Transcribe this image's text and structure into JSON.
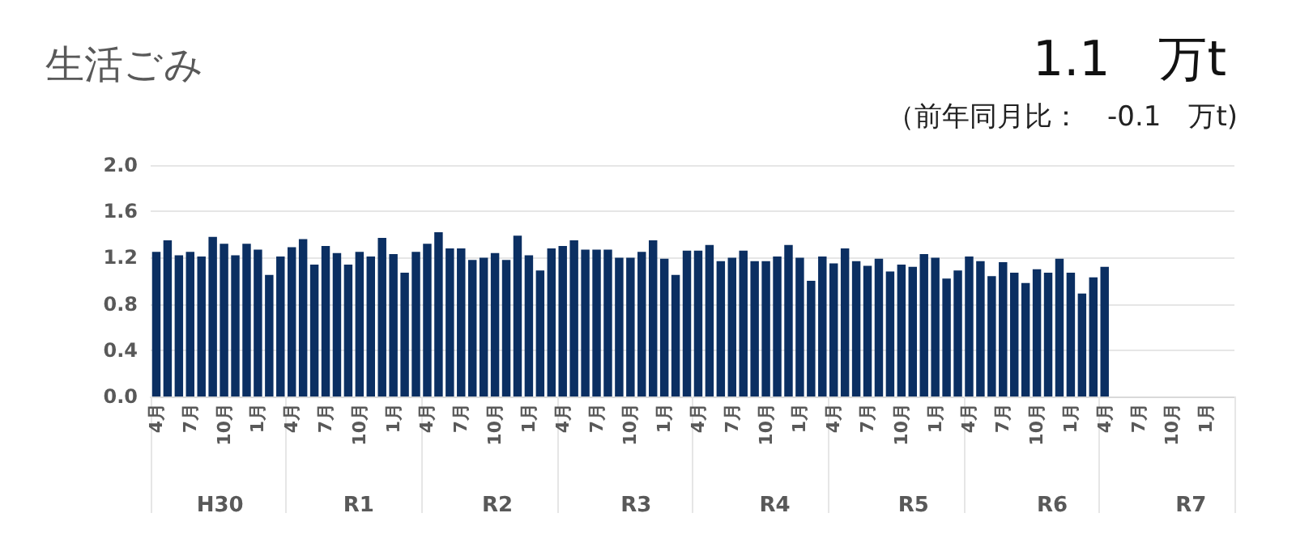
{
  "chart_data": {
    "type": "bar",
    "title": "生活ごみ",
    "subtitle": "1.1　万t",
    "annotations": [
      "（前年同月比：　-0.1　万t)",
      "H30",
      "R1",
      "R2",
      "R3",
      "R4",
      "R5",
      "R6",
      "R7"
    ],
    "categories": [
      "4月",
      null,
      null,
      "7月",
      null,
      null,
      "10月",
      null,
      null,
      "1月",
      null,
      null,
      "4月",
      null,
      null,
      "7月",
      null,
      null,
      "10月",
      null,
      null,
      "1月",
      null,
      null,
      "4月",
      null,
      null,
      "7月",
      null,
      null,
      "10月",
      null,
      null,
      "1月",
      null,
      null,
      "4月",
      null,
      null,
      "7月",
      null,
      null,
      "10月",
      null,
      null,
      "1月",
      null,
      null,
      "4月",
      null,
      null,
      "7月",
      null,
      null,
      "10月",
      null,
      null,
      "1月",
      null,
      null,
      "4月",
      null,
      null,
      "7月",
      null,
      null,
      "10月",
      null,
      null,
      "1月",
      null,
      null,
      "4月",
      null,
      null,
      "7月",
      null,
      null,
      "10月",
      null,
      null,
      "1月",
      null,
      null,
      "4月",
      null,
      null,
      "7月",
      null,
      null,
      "10月",
      null,
      null,
      "1月",
      null,
      null
    ],
    "values": [
      1.25,
      1.35,
      1.22,
      1.25,
      1.21,
      1.38,
      1.32,
      1.22,
      1.32,
      1.27,
      1.05,
      1.21,
      1.29,
      1.36,
      1.14,
      1.3,
      1.24,
      1.14,
      1.25,
      1.21,
      1.37,
      1.23,
      1.07,
      1.25,
      1.32,
      1.42,
      1.28,
      1.28,
      1.18,
      1.2,
      1.24,
      1.18,
      1.39,
      1.22,
      1.09,
      1.28,
      1.3,
      1.35,
      1.27,
      1.27,
      1.27,
      1.2,
      1.2,
      1.25,
      1.35,
      1.19,
      1.05,
      1.26,
      1.26,
      1.31,
      1.17,
      1.2,
      1.26,
      1.17,
      1.17,
      1.21,
      1.31,
      1.2,
      1.0,
      1.21,
      1.15,
      1.28,
      1.17,
      1.13,
      1.19,
      1.08,
      1.14,
      1.12,
      1.23,
      1.2,
      1.02,
      1.09,
      1.21,
      1.17,
      1.04,
      1.16,
      1.07,
      0.98,
      1.1,
      1.07,
      1.19,
      1.07,
      0.89,
      1.03,
      1.12,
      null,
      null,
      null,
      null,
      null,
      null,
      null,
      null,
      null,
      null,
      null
    ],
    "color": "#0b2f62",
    "ylim": [
      0,
      2
    ],
    "yticks": [
      {
        "value": 0,
        "label": "0.0"
      },
      {
        "value": 0.4,
        "label": "0.4"
      },
      {
        "value": 0.8,
        "label": "0.8"
      },
      {
        "value": 1.2,
        "label": "1.2"
      },
      {
        "value": 1.6,
        "label": "1.6"
      },
      {
        "value": 2,
        "label": "2.0"
      }
    ],
    "grid": "y"
  }
}
